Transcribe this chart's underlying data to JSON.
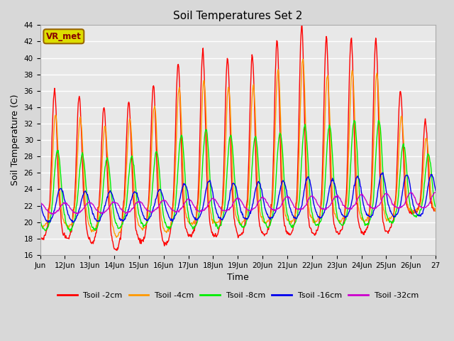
{
  "title": "Soil Temperatures Set 2",
  "xlabel": "Time",
  "ylabel": "Soil Temperature (C)",
  "ylim": [
    16,
    44
  ],
  "yticks": [
    16,
    18,
    20,
    22,
    24,
    26,
    28,
    30,
    32,
    34,
    36,
    38,
    40,
    42,
    44
  ],
  "xtick_labels": [
    "Jun",
    "12Jun",
    "13Jun",
    "14Jun",
    "15Jun",
    "16Jun",
    "17Jun",
    "18Jun",
    "19Jun",
    "20Jun",
    "21Jun",
    "22Jun",
    "23Jun",
    "24Jun",
    "25Jun",
    "26Jun",
    "27"
  ],
  "colors": {
    "Tsoil -2cm": "#ff0000",
    "Tsoil -4cm": "#ff9900",
    "Tsoil -8cm": "#00ee00",
    "Tsoil -16cm": "#0000ee",
    "Tsoil -32cm": "#cc00cc"
  },
  "annotation_text": "VR_met",
  "annotation_box_facecolor": "#dddd00",
  "annotation_box_edgecolor": "#996600",
  "annotation_text_color": "#880000",
  "plot_bg_color": "#e8e8e8",
  "fig_bg_color": "#d8d8d8",
  "grid_color": "#ffffff",
  "figsize": [
    6.4,
    4.8
  ],
  "dpi": 100,
  "n_days": 16,
  "base_temp": 21.5,
  "base_slope": 0.05
}
